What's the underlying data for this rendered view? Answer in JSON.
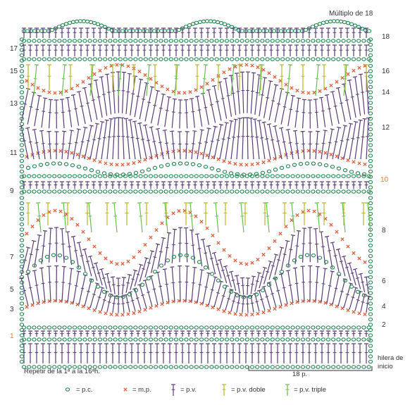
{
  "header": {
    "multiple_label": "Múltiplo de 18"
  },
  "row_labels_left": [
    "17",
    "15",
    "13",
    "11",
    "9",
    "7",
    "5",
    "3",
    "1"
  ],
  "row_labels_right": [
    "18",
    "16",
    "14",
    "12",
    "10",
    "8",
    "6",
    "4",
    "2"
  ],
  "highlight_color": "#e07d3a",
  "footer": {
    "repeat_note": "Repetir de la 1ᵃ a la 16ᵃh.",
    "start_row_line1": "hilera de",
    "start_row_line2": "inicio",
    "span_label": "18 p."
  },
  "legend": [
    {
      "symbol": "chain-icon",
      "label": "= p.c.",
      "color": "#2e8b57"
    },
    {
      "symbol": "slip-stitch-icon",
      "label": "= m.p.",
      "color": "#e0603a"
    },
    {
      "symbol": "double-crochet-icon",
      "label": "= p.v.",
      "color": "#5a3d78"
    },
    {
      "symbol": "treble-crochet-icon",
      "label": "= p.v. doble",
      "color": "#b8b82a"
    },
    {
      "symbol": "double-treble-icon",
      "label": "= p.v. triple",
      "color": "#6abf4b"
    }
  ]
}
